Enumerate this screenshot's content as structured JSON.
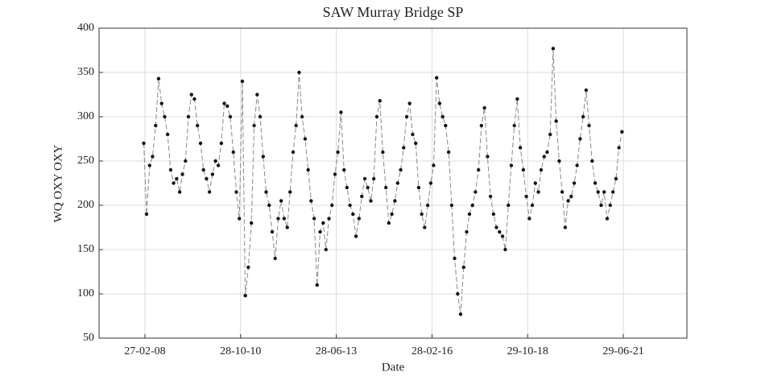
{
  "chart_data": {
    "type": "line",
    "title": "SAW Murray Bridge SP",
    "x_label": "Date",
    "y_label": "WQ OXY OXY",
    "grid": true,
    "color": "#111111",
    "line_color": "#888888",
    "xlim": [
      "2006-11-17",
      "2023-04-07"
    ],
    "ylim": [
      50,
      400
    ],
    "yticks": [
      50,
      100,
      150,
      200,
      250,
      300,
      350,
      400
    ],
    "xticks": [
      {
        "value": "2008-02-27",
        "label": "27-02-08"
      },
      {
        "value": "2010-10-28",
        "label": "28-10-10"
      },
      {
        "value": "2013-06-28",
        "label": "28-06-13"
      },
      {
        "value": "2016-02-28",
        "label": "28-02-16"
      },
      {
        "value": "2018-10-29",
        "label": "29-10-18"
      },
      {
        "value": "2021-06-29",
        "label": "29-06-21"
      }
    ],
    "x": [
      "2008-02-15",
      "2008-03-15",
      "2008-04-15",
      "2008-05-15",
      "2008-06-15",
      "2008-07-15",
      "2008-08-15",
      "2008-09-15",
      "2008-10-15",
      "2008-11-15",
      "2008-12-15",
      "2009-01-15",
      "2009-02-15",
      "2009-03-15",
      "2009-04-15",
      "2009-05-15",
      "2009-06-15",
      "2009-07-15",
      "2009-08-15",
      "2009-09-15",
      "2009-10-15",
      "2009-11-15",
      "2009-12-15",
      "2010-01-15",
      "2010-02-15",
      "2010-03-15",
      "2010-04-15",
      "2010-05-15",
      "2010-06-15",
      "2010-07-15",
      "2010-08-15",
      "2010-09-15",
      "2010-10-15",
      "2010-11-15",
      "2010-12-15",
      "2011-01-15",
      "2011-02-15",
      "2011-03-15",
      "2011-04-15",
      "2011-05-15",
      "2011-06-15",
      "2011-07-15",
      "2011-08-15",
      "2011-09-15",
      "2011-10-15",
      "2011-11-15",
      "2011-12-15",
      "2012-01-15",
      "2012-02-15",
      "2012-03-15",
      "2012-04-15",
      "2012-05-15",
      "2012-06-15",
      "2012-07-15",
      "2012-08-15",
      "2012-09-15",
      "2012-10-15",
      "2012-11-15",
      "2012-12-15",
      "2013-01-15",
      "2013-02-15",
      "2013-03-15",
      "2013-04-15",
      "2013-05-15",
      "2013-06-15",
      "2013-07-15",
      "2013-08-15",
      "2013-09-15",
      "2013-10-15",
      "2013-11-15",
      "2013-12-15",
      "2014-01-15",
      "2014-02-15",
      "2014-03-15",
      "2014-04-15",
      "2014-05-15",
      "2014-06-15",
      "2014-07-15",
      "2014-08-15",
      "2014-09-15",
      "2014-10-15",
      "2014-11-15",
      "2014-12-15",
      "2015-01-15",
      "2015-02-15",
      "2015-03-15",
      "2015-04-15",
      "2015-05-15",
      "2015-06-15",
      "2015-07-15",
      "2015-08-15",
      "2015-09-15",
      "2015-10-15",
      "2015-11-15",
      "2015-12-15",
      "2016-01-15",
      "2016-02-15",
      "2016-03-15",
      "2016-04-15",
      "2016-05-15",
      "2016-06-15",
      "2016-07-15",
      "2016-08-15",
      "2016-09-15",
      "2016-10-15",
      "2016-11-15",
      "2016-12-15",
      "2017-01-15",
      "2017-02-15",
      "2017-03-15",
      "2017-04-15",
      "2017-05-15",
      "2017-06-15",
      "2017-07-15",
      "2017-08-15",
      "2017-09-15",
      "2017-10-15",
      "2017-11-15",
      "2017-12-15",
      "2018-01-15",
      "2018-02-15",
      "2018-03-15",
      "2018-04-15",
      "2018-05-15",
      "2018-06-15",
      "2018-07-15",
      "2018-08-15",
      "2018-09-15",
      "2018-10-15",
      "2018-11-15",
      "2018-12-15",
      "2019-01-15",
      "2019-02-15",
      "2019-03-15",
      "2019-04-15",
      "2019-05-15",
      "2019-06-15",
      "2019-07-15",
      "2019-08-15",
      "2019-09-15",
      "2019-10-15",
      "2019-11-15",
      "2019-12-15",
      "2020-01-15",
      "2020-02-15",
      "2020-03-15",
      "2020-04-15",
      "2020-05-15",
      "2020-06-15",
      "2020-07-15",
      "2020-08-15",
      "2020-09-15",
      "2020-10-15",
      "2020-11-15",
      "2020-12-15",
      "2021-01-15",
      "2021-02-15",
      "2021-03-15",
      "2021-04-15",
      "2021-05-15",
      "2021-06-15"
    ],
    "values": [
      270,
      190,
      245,
      255,
      290,
      343,
      315,
      300,
      280,
      240,
      225,
      230,
      215,
      235,
      250,
      300,
      325,
      320,
      290,
      270,
      240,
      230,
      215,
      235,
      250,
      245,
      270,
      315,
      312,
      300,
      260,
      215,
      185,
      340,
      98,
      130,
      180,
      290,
      325,
      300,
      255,
      215,
      200,
      170,
      140,
      185,
      205,
      185,
      175,
      215,
      260,
      290,
      350,
      300,
      275,
      240,
      205,
      185,
      110,
      170,
      180,
      150,
      185,
      200,
      235,
      260,
      305,
      240,
      220,
      200,
      190,
      165,
      185,
      210,
      230,
      220,
      205,
      230,
      300,
      318,
      260,
      220,
      180,
      190,
      205,
      225,
      240,
      265,
      300,
      315,
      280,
      270,
      220,
      190,
      175,
      200,
      225,
      245,
      344,
      315,
      300,
      290,
      260,
      200,
      140,
      100,
      77,
      130,
      170,
      190,
      200,
      215,
      240,
      290,
      310,
      255,
      210,
      190,
      175,
      170,
      165,
      150,
      200,
      245,
      290,
      320,
      265,
      240,
      210,
      185,
      200,
      225,
      215,
      240,
      255,
      260,
      280,
      377,
      295,
      250,
      215,
      175,
      205,
      210,
      225,
      245,
      275,
      300,
      330,
      290,
      250,
      225,
      215,
      200,
      215,
      185,
      200,
      215,
      230,
      265,
      283
    ]
  }
}
